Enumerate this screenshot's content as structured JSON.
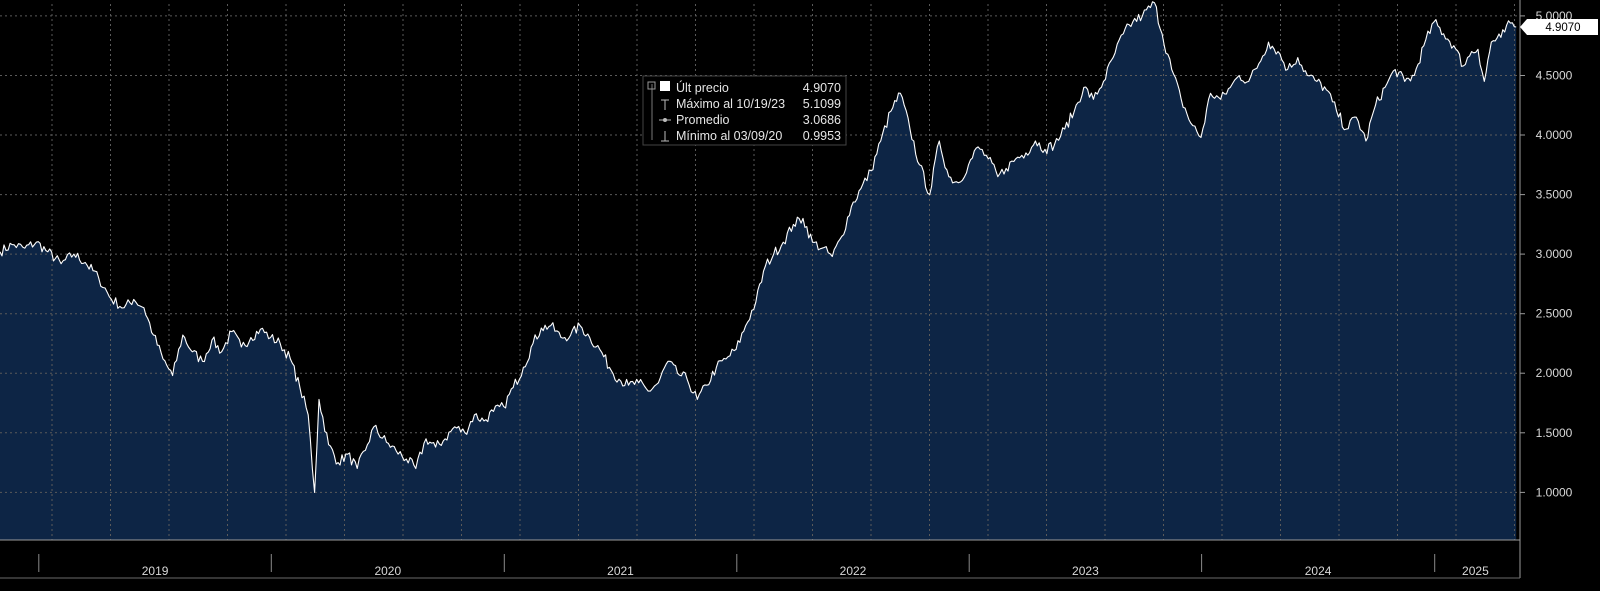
{
  "chart_data": {
    "type": "area",
    "y_axis": {
      "position": "right",
      "ylim": [
        0.6,
        5.1
      ],
      "ticks": [
        1.0,
        1.5,
        2.0,
        2.5,
        3.0,
        3.5,
        4.0,
        4.5,
        5.0
      ],
      "tick_labels": [
        "1.0000",
        "1.5000",
        "2.0000",
        "2.5000",
        "3.0000",
        "3.5000",
        "4.0000",
        "4.5000",
        "5.0000"
      ]
    },
    "x_axis": {
      "xlim": [
        "2018-11-01",
        "2025-05-15"
      ],
      "year_labels": [
        "2019",
        "2020",
        "2021",
        "2022",
        "2023",
        "2024",
        "2025"
      ]
    },
    "grid": true,
    "colors": {
      "fill": "#0d2545",
      "line": "#ffffff",
      "background": "#000000",
      "grid": "#5a5a5a"
    },
    "series": [
      {
        "values": [
          [
            "2018-11-01",
            3.02
          ],
          [
            "2018-11-20",
            3.08
          ],
          [
            "2018-12-10",
            3.05
          ],
          [
            "2018-12-28",
            3.1
          ],
          [
            "2019-01-15",
            3.02
          ],
          [
            "2019-02-05",
            2.92
          ],
          [
            "2019-02-25",
            3.0
          ],
          [
            "2019-03-15",
            2.93
          ],
          [
            "2019-04-05",
            2.8
          ],
          [
            "2019-04-25",
            2.62
          ],
          [
            "2019-05-15",
            2.55
          ],
          [
            "2019-05-30",
            2.62
          ],
          [
            "2019-06-15",
            2.55
          ],
          [
            "2019-06-30",
            2.32
          ],
          [
            "2019-07-15",
            2.12
          ],
          [
            "2019-07-30",
            1.98
          ],
          [
            "2019-08-15",
            2.32
          ],
          [
            "2019-08-30",
            2.18
          ],
          [
            "2019-09-15",
            2.1
          ],
          [
            "2019-09-30",
            2.28
          ],
          [
            "2019-10-15",
            2.18
          ],
          [
            "2019-10-31",
            2.35
          ],
          [
            "2019-11-15",
            2.22
          ],
          [
            "2019-11-30",
            2.3
          ],
          [
            "2019-12-15",
            2.37
          ],
          [
            "2019-12-31",
            2.3
          ],
          [
            "2020-01-15",
            2.25
          ],
          [
            "2020-01-31",
            2.12
          ],
          [
            "2020-02-15",
            1.88
          ],
          [
            "2020-02-28",
            1.65
          ],
          [
            "2020-03-09",
            1.0
          ],
          [
            "2020-03-16",
            1.78
          ],
          [
            "2020-03-31",
            1.4
          ],
          [
            "2020-04-15",
            1.25
          ],
          [
            "2020-04-30",
            1.32
          ],
          [
            "2020-05-15",
            1.2
          ],
          [
            "2020-05-31",
            1.4
          ],
          [
            "2020-06-10",
            1.55
          ],
          [
            "2020-06-30",
            1.42
          ],
          [
            "2020-07-15",
            1.35
          ],
          [
            "2020-07-31",
            1.28
          ],
          [
            "2020-08-15",
            1.2
          ],
          [
            "2020-08-31",
            1.45
          ],
          [
            "2020-09-15",
            1.38
          ],
          [
            "2020-09-30",
            1.45
          ],
          [
            "2020-10-15",
            1.55
          ],
          [
            "2020-10-31",
            1.5
          ],
          [
            "2020-11-15",
            1.65
          ],
          [
            "2020-11-30",
            1.6
          ],
          [
            "2020-12-15",
            1.68
          ],
          [
            "2020-12-31",
            1.72
          ],
          [
            "2021-01-15",
            1.88
          ],
          [
            "2021-01-31",
            2.05
          ],
          [
            "2021-02-15",
            2.25
          ],
          [
            "2021-02-28",
            2.38
          ],
          [
            "2021-03-15",
            2.4
          ],
          [
            "2021-03-31",
            2.3
          ],
          [
            "2021-04-15",
            2.32
          ],
          [
            "2021-04-30",
            2.4
          ],
          [
            "2021-05-15",
            2.3
          ],
          [
            "2021-05-31",
            2.2
          ],
          [
            "2021-06-15",
            2.05
          ],
          [
            "2021-06-30",
            1.95
          ],
          [
            "2021-07-15",
            1.9
          ],
          [
            "2021-07-31",
            1.92
          ],
          [
            "2021-08-15",
            1.85
          ],
          [
            "2021-08-31",
            1.92
          ],
          [
            "2021-09-15",
            2.1
          ],
          [
            "2021-09-30",
            2.0
          ],
          [
            "2021-10-15",
            1.95
          ],
          [
            "2021-10-31",
            1.78
          ],
          [
            "2021-11-15",
            1.9
          ],
          [
            "2021-11-30",
            2.05
          ],
          [
            "2021-12-15",
            2.12
          ],
          [
            "2021-12-31",
            2.2
          ],
          [
            "2022-01-15",
            2.4
          ],
          [
            "2022-01-31",
            2.6
          ],
          [
            "2022-02-15",
            2.9
          ],
          [
            "2022-02-28",
            3.0
          ],
          [
            "2022-03-15",
            3.1
          ],
          [
            "2022-03-31",
            3.25
          ],
          [
            "2022-04-15",
            3.3
          ],
          [
            "2022-04-30",
            3.1
          ],
          [
            "2022-05-15",
            3.05
          ],
          [
            "2022-05-31",
            2.98
          ],
          [
            "2022-06-15",
            3.15
          ],
          [
            "2022-06-30",
            3.4
          ],
          [
            "2022-07-15",
            3.55
          ],
          [
            "2022-07-31",
            3.7
          ],
          [
            "2022-08-15",
            3.95
          ],
          [
            "2022-08-31",
            4.2
          ],
          [
            "2022-09-15",
            4.35
          ],
          [
            "2022-09-30",
            4.05
          ],
          [
            "2022-10-15",
            3.75
          ],
          [
            "2022-10-31",
            3.5
          ],
          [
            "2022-11-15",
            3.95
          ],
          [
            "2022-11-30",
            3.65
          ],
          [
            "2022-12-15",
            3.6
          ],
          [
            "2022-12-31",
            3.75
          ],
          [
            "2023-01-15",
            3.9
          ],
          [
            "2023-01-31",
            3.8
          ],
          [
            "2023-02-15",
            3.65
          ],
          [
            "2023-02-28",
            3.72
          ],
          [
            "2023-03-15",
            3.8
          ],
          [
            "2023-03-31",
            3.85
          ],
          [
            "2023-04-15",
            3.95
          ],
          [
            "2023-04-30",
            3.88
          ],
          [
            "2023-05-15",
            3.92
          ],
          [
            "2023-05-31",
            4.05
          ],
          [
            "2023-06-15",
            4.2
          ],
          [
            "2023-06-30",
            4.4
          ],
          [
            "2023-07-15",
            4.3
          ],
          [
            "2023-07-31",
            4.45
          ],
          [
            "2023-08-15",
            4.65
          ],
          [
            "2023-08-31",
            4.85
          ],
          [
            "2023-09-15",
            4.95
          ],
          [
            "2023-09-30",
            5.0
          ],
          [
            "2023-10-19",
            5.11
          ],
          [
            "2023-10-31",
            4.85
          ],
          [
            "2023-11-15",
            4.55
          ],
          [
            "2023-11-30",
            4.3
          ],
          [
            "2023-12-15",
            4.1
          ],
          [
            "2023-12-31",
            3.98
          ],
          [
            "2024-01-15",
            4.35
          ],
          [
            "2024-01-31",
            4.3
          ],
          [
            "2024-02-15",
            4.4
          ],
          [
            "2024-02-29",
            4.5
          ],
          [
            "2024-03-15",
            4.45
          ],
          [
            "2024-03-31",
            4.6
          ],
          [
            "2024-04-15",
            4.78
          ],
          [
            "2024-04-30",
            4.7
          ],
          [
            "2024-05-15",
            4.55
          ],
          [
            "2024-05-31",
            4.65
          ],
          [
            "2024-06-15",
            4.5
          ],
          [
            "2024-06-30",
            4.45
          ],
          [
            "2024-07-15",
            4.38
          ],
          [
            "2024-07-31",
            4.2
          ],
          [
            "2024-08-15",
            4.05
          ],
          [
            "2024-08-31",
            4.15
          ],
          [
            "2024-09-15",
            3.95
          ],
          [
            "2024-09-30",
            4.25
          ],
          [
            "2024-10-15",
            4.4
          ],
          [
            "2024-10-31",
            4.55
          ],
          [
            "2024-11-15",
            4.45
          ],
          [
            "2024-11-30",
            4.5
          ],
          [
            "2024-12-15",
            4.75
          ],
          [
            "2024-12-31",
            4.95
          ],
          [
            "2025-01-15",
            4.85
          ],
          [
            "2025-01-31",
            4.75
          ],
          [
            "2025-02-15",
            4.58
          ],
          [
            "2025-02-28",
            4.7
          ],
          [
            "2025-03-10",
            4.72
          ],
          [
            "2025-03-20",
            4.45
          ],
          [
            "2025-03-31",
            4.78
          ],
          [
            "2025-04-15",
            4.82
          ],
          [
            "2025-04-30",
            4.94
          ],
          [
            "2025-05-09",
            4.907
          ]
        ]
      }
    ],
    "legend": {
      "placement": "top-center",
      "entries": [
        {
          "label": "Últ precio",
          "value": "4.9070"
        },
        {
          "label": "Máximo al 10/19/23",
          "value": "5.1099"
        },
        {
          "label": "Promedio",
          "value": "3.0686"
        },
        {
          "label": "Mínimo al 03/09/20",
          "value": "0.9953"
        }
      ]
    },
    "last_value_tag": "4.9070"
  }
}
